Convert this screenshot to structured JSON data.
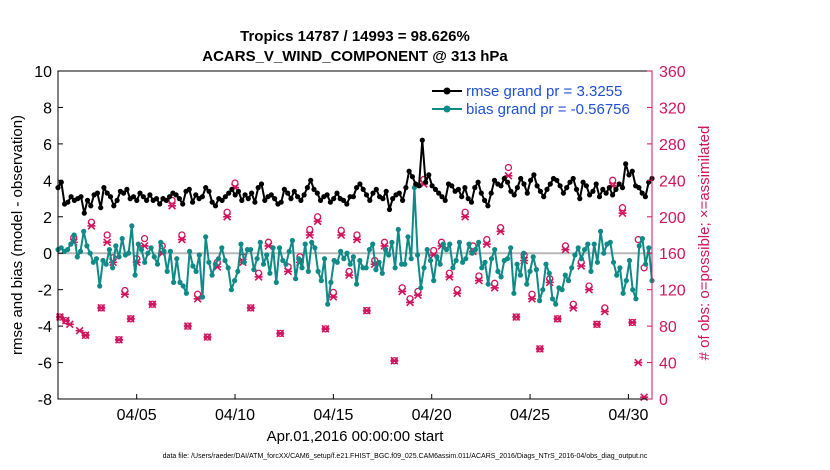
{
  "chart_data": {
    "type": "line",
    "title": "Tropics 14787 / 14993 = 98.626%",
    "subtitle": "ACARS_V_WIND_COMPONENT @ 313 hPa",
    "xlabel": "Apr.01,2016 00:00:00 start",
    "ylabel": "rmse and bias (model - observation)",
    "y2label": "# of obs: o=possible; ×=assimilated",
    "footer": "data file: /Users/raeder/DAI/ATM_forcXX/CAM6_setup/f.e21.FHIST_BGC.f09_025.CAM6assim.011/ACARS_2016/Diags_NTrS_2016-04/obs_diag_output.nc",
    "x_domain": [
      1.0,
      31.2
    ],
    "x_ticks": [
      {
        "v": 5,
        "label": "04/05"
      },
      {
        "v": 10,
        "label": "04/10"
      },
      {
        "v": 15,
        "label": "04/15"
      },
      {
        "v": 20,
        "label": "04/20"
      },
      {
        "v": 25,
        "label": "04/25"
      },
      {
        "v": 30,
        "label": "04/30"
      }
    ],
    "ylim": [
      -8,
      10
    ],
    "y_ticks": [
      -8,
      -6,
      -4,
      -2,
      0,
      2,
      4,
      6,
      8,
      10
    ],
    "y2lim": [
      0,
      360
    ],
    "y2_ticks": [
      0,
      40,
      80,
      120,
      160,
      200,
      240,
      280,
      320,
      360
    ],
    "legend": [
      {
        "label": "rmse grand pr = 3.3255",
        "color": "#000000"
      },
      {
        "label": "bias grand pr = -0.56756",
        "color": "#008080"
      }
    ],
    "colors": {
      "rmse": "#000000",
      "bias": "#0f8a87",
      "obs": "#d0155f",
      "zero_line": "#b8b8b8",
      "legend_text": "#1f4fd6",
      "right_axis": "#d0155f"
    },
    "series": [
      {
        "name": "rmse",
        "axis": "left",
        "values": [
          3.6,
          3.9,
          2.7,
          2.8,
          3.1,
          2.9,
          3.0,
          3.1,
          2.2,
          2.9,
          2.6,
          3.2,
          3.3,
          2.5,
          3.6,
          3.3,
          3.1,
          2.6,
          2.9,
          3.4,
          3.3,
          3.5,
          3.0,
          3.1,
          2.9,
          3.3,
          3.1,
          2.9,
          3.2,
          2.9,
          3.0,
          2.7,
          3.0,
          2.9,
          3.1,
          3.3,
          3.2,
          3.0,
          2.7,
          3.4,
          3.5,
          2.8,
          3.2,
          3.0,
          3.1,
          3.6,
          3.4,
          2.8,
          2.6,
          3.0,
          2.9,
          3.1,
          3.3,
          3.5,
          3.2,
          3.4,
          2.9,
          3.2,
          3.0,
          3.3,
          2.8,
          3.6,
          3.8,
          2.9,
          3.1,
          3.2,
          3.0,
          2.7,
          2.8,
          3.5,
          3.3,
          3.0,
          3.4,
          3.1,
          2.9,
          3.2,
          3.6,
          4.0,
          3.5,
          3.3,
          2.9,
          3.1,
          3.2,
          2.8,
          3.0,
          3.3,
          3.0,
          2.9,
          2.7,
          3.1,
          3.1,
          3.6,
          3.8,
          3.5,
          3.2,
          2.9,
          3.3,
          3.5,
          3.1,
          3.0,
          3.4,
          2.4,
          3.0,
          3.2,
          3.3,
          2.9,
          3.6,
          4.5,
          4.2,
          3.8,
          3.7,
          6.2,
          3.9,
          4.3,
          3.7,
          3.5,
          3.3,
          3.1,
          2.9,
          3.8,
          3.7,
          3.4,
          3.5,
          3.1,
          3.6,
          3.0,
          2.8,
          3.6,
          3.9,
          3.3,
          2.9,
          2.6,
          3.3,
          4.0,
          3.8,
          3.7,
          4.1,
          3.9,
          3.4,
          3.2,
          3.6,
          4.1,
          3.8,
          3.3,
          4.0,
          4.3,
          3.7,
          3.4,
          3.1,
          3.5,
          3.8,
          4.1,
          4.0,
          3.7,
          3.3,
          3.6,
          3.9,
          4.1,
          3.5,
          3.0,
          3.9,
          3.7,
          3.2,
          3.4,
          3.8,
          3.1,
          3.5,
          3.3,
          3.6,
          3.2,
          3.5,
          3.8,
          3.6,
          4.9,
          4.3,
          4.5,
          3.7,
          3.6,
          3.3,
          3.1,
          3.9,
          4.1
        ]
      },
      {
        "name": "bias",
        "axis": "left",
        "values": [
          0.2,
          0.3,
          0.1,
          0.2,
          0.5,
          1.0,
          -0.2,
          0.1,
          1.2,
          0.4,
          0.0,
          -0.5,
          -0.3,
          -1.8,
          -0.4,
          -0.6,
          0.2,
          -0.8,
          0.4,
          -0.2,
          0.8,
          -0.1,
          0.0,
          1.5,
          -1.2,
          0.5,
          0.2,
          -0.5,
          0.0,
          0.3,
          -0.2,
          -0.6,
          0.6,
          0.1,
          -1.0,
          0.1,
          -1.6,
          -0.3,
          -1.6,
          -1.8,
          -2.2,
          0.1,
          -0.7,
          -1.0,
          -0.1,
          -2.4,
          0.9,
          -0.5,
          -1.2,
          -0.6,
          -0.3,
          0.3,
          -0.4,
          -0.8,
          -2.0,
          -1.5,
          -1.0,
          0.5,
          -0.5,
          0.2,
          0.2,
          -0.9,
          -0.3,
          0.6,
          -0.6,
          -0.1,
          -1.1,
          0.3,
          -1.6,
          0.3,
          -0.4,
          -0.6,
          0.1,
          0.7,
          -1.4,
          -0.3,
          -0.8,
          0.5,
          -1.0,
          0.6,
          0.3,
          -1.0,
          -1.5,
          -0.3,
          -2.8,
          -1.6,
          -0.4,
          -0.5,
          0.1,
          -0.3,
          0.0,
          -0.6,
          -0.2,
          -1.7,
          -0.4,
          -0.8,
          -0.8,
          0.2,
          0.5,
          -0.9,
          -0.5,
          -1.1,
          0.2,
          -0.1,
          0.6,
          -0.8,
          1.3,
          -0.6,
          -0.6,
          0.9,
          -0.3,
          3.6,
          -0.1,
          -1.9,
          -0.8,
          0.2,
          -0.4,
          -1.5,
          -0.2,
          -0.6,
          0.5,
          0.2,
          0.5,
          -0.8,
          -0.4,
          0.6,
          -0.5,
          -0.3,
          0.5,
          0.0,
          0.2,
          0.6,
          -0.8,
          -0.5,
          -1.7,
          -0.3,
          0.2,
          -1.0,
          -1.3,
          -0.4,
          -0.3,
          0.3,
          -2.2,
          -0.6,
          -1.2,
          0.0,
          -1.7,
          -1.0,
          -0.2,
          -0.9,
          -2.6,
          -2.0,
          -0.6,
          -1.1,
          -2.5,
          -2.8,
          -1.9,
          -2.0,
          -1.2,
          -1.5,
          -0.8,
          -0.1,
          0.3,
          -0.3,
          0.2,
          0.5,
          -1.0,
          0.5,
          -0.5,
          1.2,
          0.0,
          0.5,
          0.6,
          -0.5,
          -1.2,
          -0.8,
          -2.2,
          -1.5,
          -0.4,
          -2.0,
          -2.5,
          0.4,
          0.8,
          -0.6,
          0.3,
          -1.5
        ]
      }
    ],
    "obs_possible": [
      {
        "x": 1.1,
        "y": 90
      },
      {
        "x": 1.4,
        "y": 86
      },
      {
        "x": 1.8,
        "y": 177
      },
      {
        "x": 2.4,
        "y": 70
      },
      {
        "x": 2.7,
        "y": 194
      },
      {
        "x": 3.2,
        "y": 100
      },
      {
        "x": 3.5,
        "y": 180
      },
      {
        "x": 3.8,
        "y": 155
      },
      {
        "x": 4.1,
        "y": 65
      },
      {
        "x": 4.4,
        "y": 119
      },
      {
        "x": 4.7,
        "y": 88
      },
      {
        "x": 5.0,
        "y": 154
      },
      {
        "x": 5.4,
        "y": 176
      },
      {
        "x": 5.8,
        "y": 104
      },
      {
        "x": 6.3,
        "y": 168
      },
      {
        "x": 6.8,
        "y": 218
      },
      {
        "x": 7.3,
        "y": 180
      },
      {
        "x": 7.6,
        "y": 80
      },
      {
        "x": 8.1,
        "y": 115
      },
      {
        "x": 8.6,
        "y": 68
      },
      {
        "x": 9.1,
        "y": 150
      },
      {
        "x": 9.6,
        "y": 205
      },
      {
        "x": 10.0,
        "y": 237
      },
      {
        "x": 10.4,
        "y": 156
      },
      {
        "x": 10.8,
        "y": 100
      },
      {
        "x": 11.2,
        "y": 138
      },
      {
        "x": 11.7,
        "y": 172
      },
      {
        "x": 12.3,
        "y": 72
      },
      {
        "x": 12.7,
        "y": 145
      },
      {
        "x": 13.3,
        "y": 156
      },
      {
        "x": 13.8,
        "y": 186
      },
      {
        "x": 14.2,
        "y": 200
      },
      {
        "x": 14.6,
        "y": 77
      },
      {
        "x": 15.0,
        "y": 117
      },
      {
        "x": 15.4,
        "y": 185
      },
      {
        "x": 15.8,
        "y": 140
      },
      {
        "x": 16.2,
        "y": 180
      },
      {
        "x": 16.7,
        "y": 97
      },
      {
        "x": 17.1,
        "y": 152
      },
      {
        "x": 17.6,
        "y": 172
      },
      {
        "x": 18.1,
        "y": 42
      },
      {
        "x": 18.5,
        "y": 122
      },
      {
        "x": 18.9,
        "y": 110
      },
      {
        "x": 19.3,
        "y": 118
      },
      {
        "x": 19.6,
        "y": 241
      },
      {
        "x": 20.1,
        "y": 163
      },
      {
        "x": 20.5,
        "y": 172
      },
      {
        "x": 20.9,
        "y": 138
      },
      {
        "x": 21.3,
        "y": 120
      },
      {
        "x": 21.7,
        "y": 205
      },
      {
        "x": 22.1,
        "y": 168
      },
      {
        "x": 22.4,
        "y": 135
      },
      {
        "x": 22.8,
        "y": 175
      },
      {
        "x": 23.2,
        "y": 127
      },
      {
        "x": 23.5,
        "y": 188
      },
      {
        "x": 23.9,
        "y": 254
      },
      {
        "x": 24.3,
        "y": 90
      },
      {
        "x": 24.7,
        "y": 158
      },
      {
        "x": 25.1,
        "y": 115
      },
      {
        "x": 25.5,
        "y": 55
      },
      {
        "x": 26.0,
        "y": 132
      },
      {
        "x": 26.4,
        "y": 88
      },
      {
        "x": 26.8,
        "y": 168
      },
      {
        "x": 27.2,
        "y": 104
      },
      {
        "x": 27.6,
        "y": 150
      },
      {
        "x": 28.0,
        "y": 124
      },
      {
        "x": 28.4,
        "y": 82
      },
      {
        "x": 28.8,
        "y": 100
      },
      {
        "x": 29.2,
        "y": 240
      },
      {
        "x": 29.7,
        "y": 210
      },
      {
        "x": 30.2,
        "y": 84
      },
      {
        "x": 30.5,
        "y": 175
      },
      {
        "x": 30.8,
        "y": 144
      }
    ],
    "obs_assimilated": [
      {
        "x": 1.1,
        "y": 90
      },
      {
        "x": 1.4,
        "y": 86
      },
      {
        "x": 1.6,
        "y": 82
      },
      {
        "x": 1.8,
        "y": 172
      },
      {
        "x": 2.1,
        "y": 75
      },
      {
        "x": 2.4,
        "y": 70
      },
      {
        "x": 2.7,
        "y": 190
      },
      {
        "x": 3.2,
        "y": 100
      },
      {
        "x": 3.5,
        "y": 172
      },
      {
        "x": 3.8,
        "y": 150
      },
      {
        "x": 4.1,
        "y": 65
      },
      {
        "x": 4.4,
        "y": 115
      },
      {
        "x": 4.7,
        "y": 88
      },
      {
        "x": 5.0,
        "y": 150
      },
      {
        "x": 5.4,
        "y": 168
      },
      {
        "x": 5.8,
        "y": 104
      },
      {
        "x": 6.3,
        "y": 160
      },
      {
        "x": 6.8,
        "y": 212
      },
      {
        "x": 7.3,
        "y": 175
      },
      {
        "x": 7.6,
        "y": 80
      },
      {
        "x": 8.1,
        "y": 110
      },
      {
        "x": 8.6,
        "y": 68
      },
      {
        "x": 9.1,
        "y": 145
      },
      {
        "x": 9.6,
        "y": 200
      },
      {
        "x": 10.0,
        "y": 232
      },
      {
        "x": 10.4,
        "y": 150
      },
      {
        "x": 10.8,
        "y": 100
      },
      {
        "x": 11.2,
        "y": 134
      },
      {
        "x": 11.7,
        "y": 168
      },
      {
        "x": 12.3,
        "y": 72
      },
      {
        "x": 12.7,
        "y": 140
      },
      {
        "x": 13.3,
        "y": 150
      },
      {
        "x": 13.8,
        "y": 180
      },
      {
        "x": 14.2,
        "y": 195
      },
      {
        "x": 14.6,
        "y": 77
      },
      {
        "x": 15.0,
        "y": 112
      },
      {
        "x": 15.4,
        "y": 180
      },
      {
        "x": 15.8,
        "y": 136
      },
      {
        "x": 16.2,
        "y": 175
      },
      {
        "x": 16.7,
        "y": 97
      },
      {
        "x": 17.1,
        "y": 148
      },
      {
        "x": 17.6,
        "y": 168
      },
      {
        "x": 18.1,
        "y": 42
      },
      {
        "x": 18.5,
        "y": 118
      },
      {
        "x": 18.9,
        "y": 106
      },
      {
        "x": 19.3,
        "y": 114
      },
      {
        "x": 19.6,
        "y": 236
      },
      {
        "x": 20.1,
        "y": 158
      },
      {
        "x": 20.5,
        "y": 168
      },
      {
        "x": 20.9,
        "y": 134
      },
      {
        "x": 21.3,
        "y": 116
      },
      {
        "x": 21.7,
        "y": 200
      },
      {
        "x": 22.1,
        "y": 162
      },
      {
        "x": 22.4,
        "y": 130
      },
      {
        "x": 22.8,
        "y": 170
      },
      {
        "x": 23.2,
        "y": 122
      },
      {
        "x": 23.5,
        "y": 184
      },
      {
        "x": 23.9,
        "y": 245
      },
      {
        "x": 24.3,
        "y": 90
      },
      {
        "x": 24.7,
        "y": 152
      },
      {
        "x": 25.1,
        "y": 110
      },
      {
        "x": 25.5,
        "y": 55
      },
      {
        "x": 26.0,
        "y": 128
      },
      {
        "x": 26.4,
        "y": 88
      },
      {
        "x": 26.8,
        "y": 164
      },
      {
        "x": 27.2,
        "y": 100
      },
      {
        "x": 27.6,
        "y": 146
      },
      {
        "x": 28.0,
        "y": 120
      },
      {
        "x": 28.4,
        "y": 82
      },
      {
        "x": 28.8,
        "y": 96
      },
      {
        "x": 29.2,
        "y": 234
      },
      {
        "x": 29.7,
        "y": 204
      },
      {
        "x": 30.2,
        "y": 84
      },
      {
        "x": 30.5,
        "y": 40
      },
      {
        "x": 30.8,
        "y": 2
      }
    ]
  }
}
